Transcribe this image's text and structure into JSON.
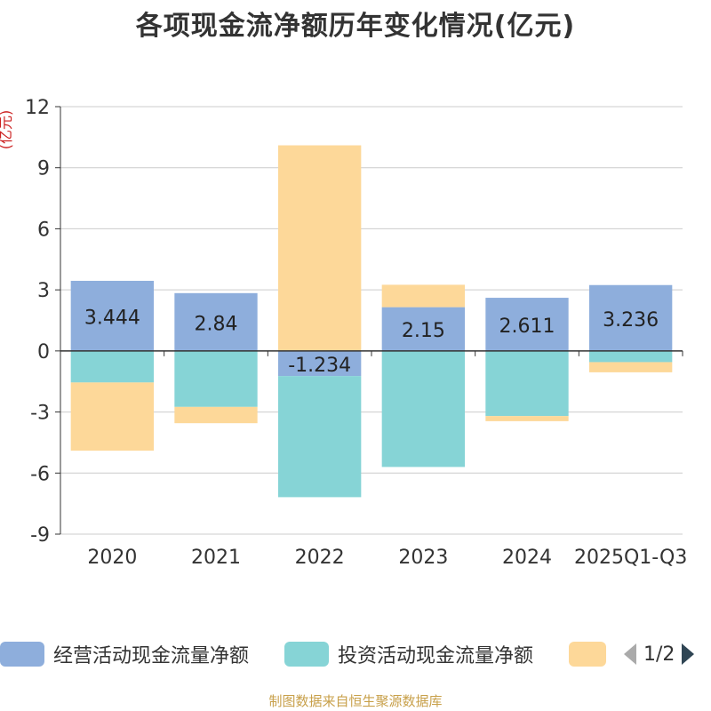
{
  "chart_data": {
    "type": "bar",
    "stacked": true,
    "title": "各项现金流净额历年变化情况(亿元)",
    "ylabel": "(亿元)",
    "ylim": [
      -9,
      12
    ],
    "yticks": [
      -9,
      -6,
      -3,
      0,
      3,
      6,
      9,
      12
    ],
    "categories": [
      "2020",
      "2021",
      "2022",
      "2023",
      "2024",
      "2025Q1-Q3"
    ],
    "series": [
      {
        "name": "经营活动现金流量净额",
        "color": "#8eaedc",
        "values": [
          3.444,
          2.84,
          -1.234,
          2.15,
          2.611,
          3.236
        ],
        "labels": [
          "3.444",
          "2.84",
          "-1.234",
          "2.15",
          "2.611",
          "3.236"
        ]
      },
      {
        "name": "投资活动现金流量净额",
        "color": "#86d4d6",
        "values": [
          -1.55,
          -2.75,
          -5.95,
          -5.7,
          -3.2,
          -0.55
        ]
      },
      {
        "name": "",
        "color": "#fdd899",
        "values": [
          -3.35,
          -0.8,
          10.1,
          1.1,
          -0.25,
          -0.5
        ]
      }
    ]
  },
  "legend": {
    "items": [
      {
        "label": "经营活动现金流量净额",
        "color": "#8eaedc"
      },
      {
        "label": "投资活动现金流量净额",
        "color": "#86d4d6"
      },
      {
        "label": "",
        "color": "#fdd899"
      }
    ],
    "page": "1/2"
  },
  "footer": {
    "source": "制图数据来自恒生聚源数据库"
  }
}
